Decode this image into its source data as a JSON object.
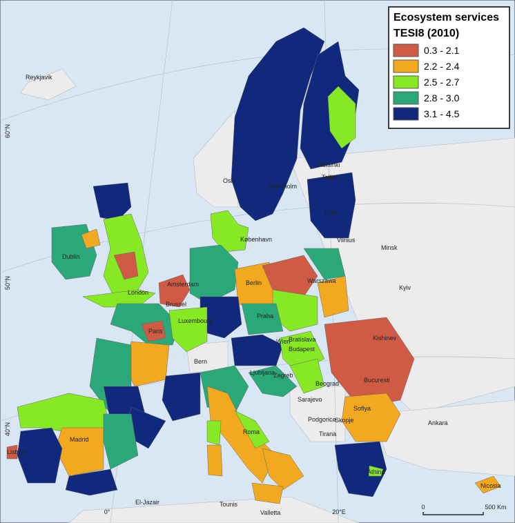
{
  "legend": {
    "title": "Ecosystem services",
    "subtitle": "TESI8 (2010)",
    "classes": [
      {
        "label": "0.3 - 2.1",
        "color": "#cf5b45"
      },
      {
        "label": "2.2 - 2.4",
        "color": "#f2a81f"
      },
      {
        "label": "2.5 - 2.7",
        "color": "#87e924"
      },
      {
        "label": "2.8 - 3.0",
        "color": "#2aa87a"
      },
      {
        "label": "3.1 - 4.5",
        "color": "#10297c"
      }
    ]
  },
  "cities": [
    "Reykjavik",
    "Oslo",
    "Stockholm",
    "Helsinki",
    "Tallinn",
    "Riga",
    "Vilnius",
    "Minsk",
    "København",
    "Dublin",
    "London",
    "Amsterdam",
    "Berlin",
    "Warszawa",
    "Kyiv",
    "Brussel",
    "Luxembourg",
    "Paris",
    "Praha",
    "Wien",
    "Bratislava",
    "Budapest",
    "Kishinev",
    "Bern",
    "Ljubljana",
    "Zagreb",
    "Beograd",
    "Bucuresti",
    "Sarajevo",
    "Sofiya",
    "Podgorica",
    "Skopje",
    "Tirana",
    "Roma",
    "Madrid",
    "Lisboa",
    "Ankara",
    "Athina",
    "Nicosia",
    "El-Jazair",
    "Tounis",
    "Valletta"
  ],
  "graticule": [
    "60°N",
    "50°N",
    "40°N",
    "0°",
    "20°E"
  ],
  "scale": [
    "0",
    "500 Km"
  ]
}
